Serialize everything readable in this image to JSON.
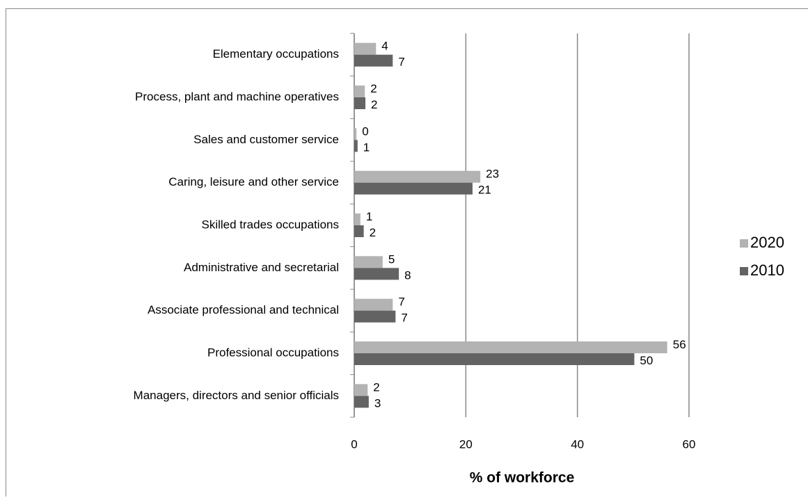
{
  "chart_data": {
    "type": "hbar",
    "categories": [
      "Elementary occupations",
      "Process, plant and machine operatives",
      "Sales and customer service",
      "Caring, leisure and other service",
      "Skilled trades occupations",
      "Administrative and secretarial",
      "Associate professional and technical",
      "Professional occupations",
      "Managers, directors and senior officials"
    ],
    "series": [
      {
        "name": "2020",
        "color": "#b3b3b3",
        "values": [
          3.9,
          1.9,
          0.4,
          22.6,
          1.1,
          5.1,
          6.9,
          56.1,
          2.4
        ],
        "value_labels": [
          "4",
          "2",
          "0",
          "23",
          "1",
          "5",
          "7",
          "56",
          "2"
        ]
      },
      {
        "name": "2010",
        "color": "#636363",
        "values": [
          6.9,
          2.0,
          0.6,
          21.2,
          1.7,
          8.0,
          7.4,
          50.2,
          2.6
        ],
        "value_labels": [
          "7",
          "2",
          "1",
          "21",
          "2",
          "8",
          "7",
          "50",
          "3"
        ]
      }
    ],
    "xlabel": "% of workforce",
    "xlim": [
      0,
      60
    ],
    "xticks": [
      0,
      20,
      40,
      60
    ],
    "grid": true,
    "legend": "right"
  }
}
